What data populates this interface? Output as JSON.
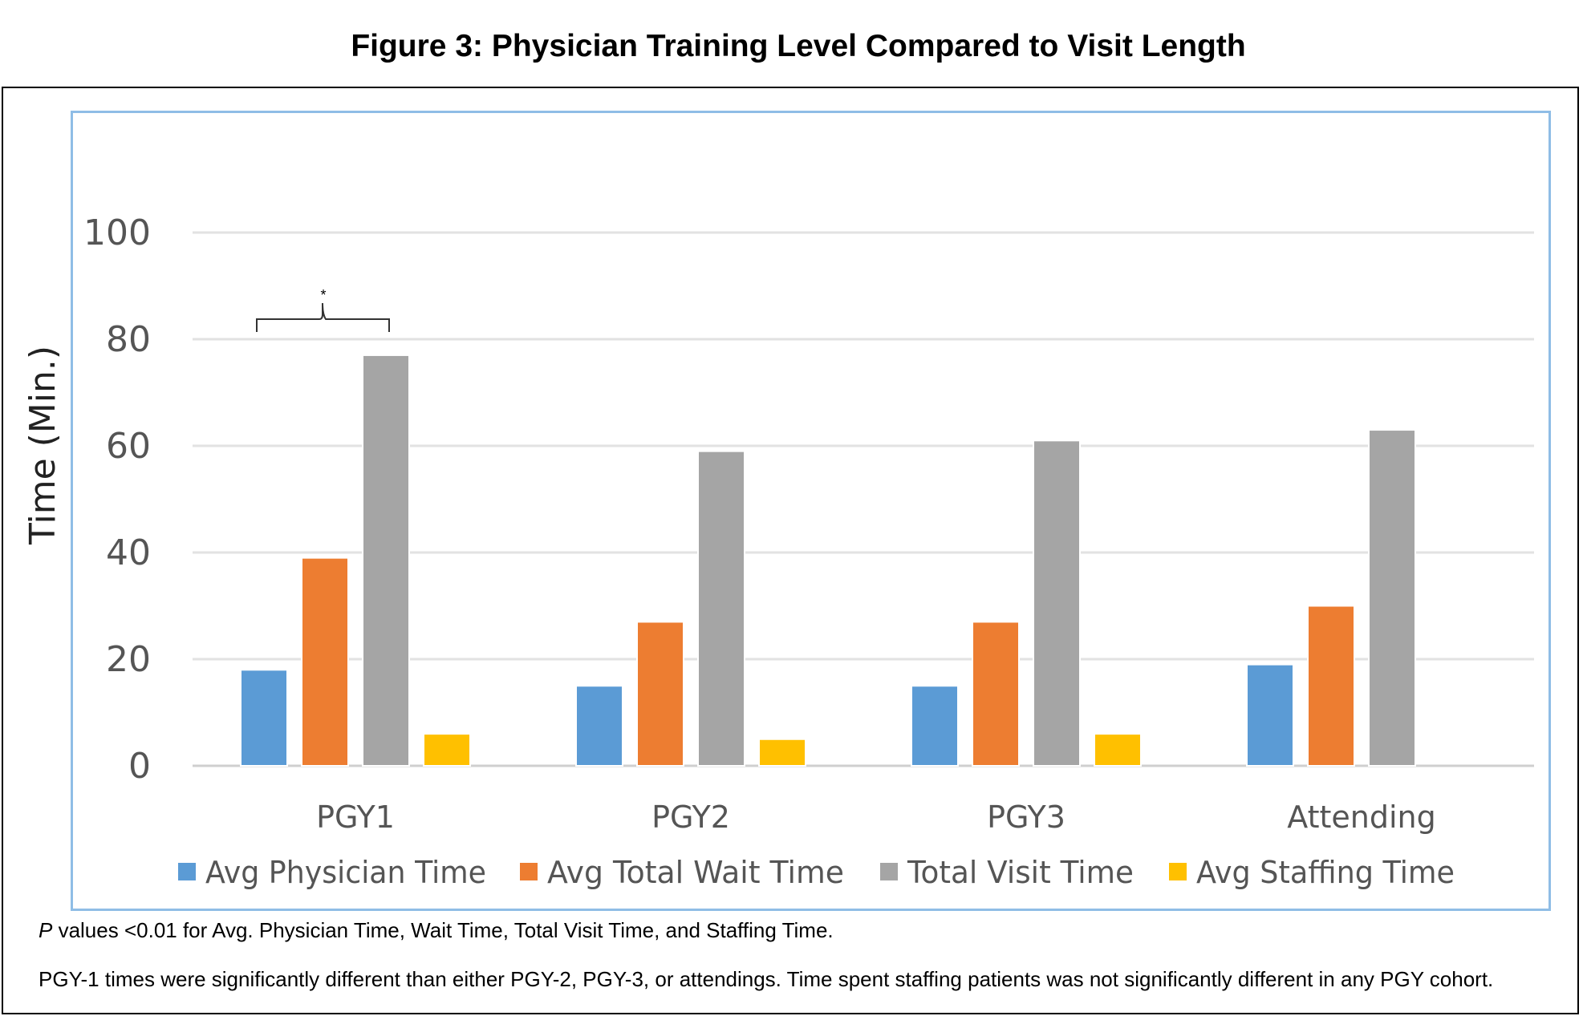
{
  "figure_title": "Figure 3: Physician Training Level Compared to Visit Length",
  "annotation": "*",
  "footnotes": {
    "p_label": "P",
    "p_text": " values <0.01 for Avg. Physician Time, Wait Time, Total Visit Time, and Staffing Time.",
    "note2": "PGY-1 times were significantly different than either PGY-2, PGY-3, or attendings. Time spent staffing patients was not significantly different in any PGY cohort."
  },
  "chart_data": {
    "type": "bar",
    "title": "",
    "xlabel": "",
    "ylabel": "Time (Min.)",
    "ylim": [
      0,
      100
    ],
    "yticks": [
      0,
      20,
      40,
      60,
      80,
      100
    ],
    "grid": true,
    "legend_position": "bottom",
    "categories": [
      "PGY1",
      "PGY2",
      "PGY3",
      "Attending"
    ],
    "series": [
      {
        "name": "Avg Physician Time",
        "color": "#5b9bd5",
        "values": [
          18,
          15,
          15,
          19
        ]
      },
      {
        "name": "Avg Total Wait Time",
        "color": "#ed7d31",
        "values": [
          39,
          27,
          27,
          30
        ]
      },
      {
        "name": "Total Visit Time",
        "color": "#a5a5a5",
        "values": [
          77,
          59,
          61,
          63
        ]
      },
      {
        "name": "Avg Staffing Time",
        "color": "#ffc000",
        "values": [
          6,
          5,
          6,
          null
        ]
      }
    ]
  }
}
